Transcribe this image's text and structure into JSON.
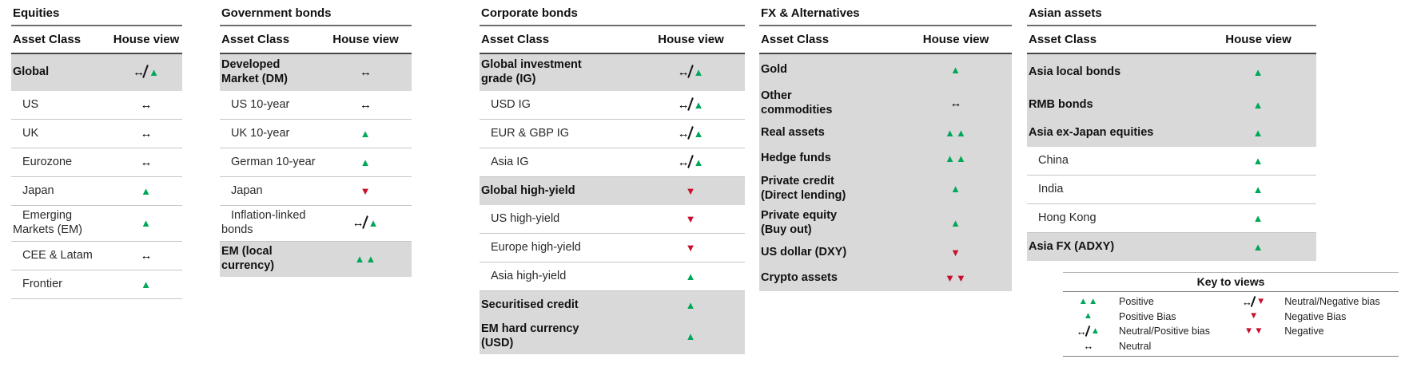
{
  "colors": {
    "positive_green": "#00a758",
    "negative_red": "#c8102e",
    "highlight_row_gray": "#d9d9d9"
  },
  "view_glyphs": {
    "up": "▲",
    "down": "▼",
    "neutral": "↔"
  },
  "tables": [
    {
      "title": "Equities",
      "headers": {
        "asset_class": "Asset Class",
        "house_view": "House view"
      },
      "rows": [
        {
          "label": "Global",
          "view": "neutral_positive_bias",
          "emphasis": true
        },
        {
          "label": "US",
          "view": "neutral"
        },
        {
          "label": "UK",
          "view": "neutral"
        },
        {
          "label": "Eurozone",
          "view": "neutral"
        },
        {
          "label": "Japan",
          "view": "positive_bias"
        },
        {
          "label": "Emerging\nMarkets (EM)",
          "view": "positive_bias",
          "two_line": true
        },
        {
          "label": "CEE & Latam",
          "view": "neutral"
        },
        {
          "label": "Frontier",
          "view": "positive_bias"
        }
      ]
    },
    {
      "title": "Government bonds",
      "headers": {
        "asset_class": "Asset Class",
        "house_view": "House view"
      },
      "rows": [
        {
          "label": "Developed\nMarket (DM)",
          "view": "neutral",
          "emphasis": true,
          "two_line": true
        },
        {
          "label": "US 10-year",
          "view": "neutral"
        },
        {
          "label": "UK 10-year",
          "view": "positive_bias"
        },
        {
          "label": "German 10-year",
          "view": "positive_bias"
        },
        {
          "label": "Japan",
          "view": "negative_bias"
        },
        {
          "label": "Inflation-linked\nbonds",
          "view": "neutral_positive_bias",
          "two_line": true
        },
        {
          "label": "EM (local\ncurrency)",
          "view": "positive",
          "emphasis": true,
          "two_line": true
        }
      ]
    },
    {
      "title": "Corporate bonds",
      "headers": {
        "asset_class": "Asset Class",
        "house_view": "House view"
      },
      "rows": [
        {
          "label": "Global investment\ngrade (IG)",
          "view": "neutral_positive_bias",
          "emphasis": true,
          "two_line": true
        },
        {
          "label": "USD IG",
          "view": "neutral_positive_bias"
        },
        {
          "label": "EUR & GBP IG",
          "view": "neutral_positive_bias"
        },
        {
          "label": "Asia IG",
          "view": "neutral_positive_bias"
        },
        {
          "label": "Global high-yield",
          "view": "negative_bias",
          "emphasis": true
        },
        {
          "label": "US high-yield",
          "view": "negative_bias"
        },
        {
          "label": "Europe high-yield",
          "view": "negative_bias"
        },
        {
          "label": "Asia high-yield",
          "view": "positive_bias"
        },
        {
          "label": "Securitised credit",
          "view": "positive_bias",
          "emphasis": true
        },
        {
          "label": "EM hard currency\n(USD)",
          "view": "positive_bias",
          "emphasis": true,
          "two_line": true
        }
      ]
    },
    {
      "title": "FX & Alternatives",
      "headers": {
        "asset_class": "Asset Class",
        "house_view": "House view"
      },
      "body_highlight": true,
      "rows": [
        {
          "label": "Gold",
          "view": "positive_bias",
          "emphasis": true
        },
        {
          "label": "Other\ncommodities",
          "view": "neutral",
          "emphasis": true,
          "two_line": true
        },
        {
          "label": "Real assets",
          "view": "positive",
          "emphasis": true
        },
        {
          "label": "Hedge funds",
          "view": "positive",
          "emphasis": true
        },
        {
          "label": "Private credit\n(Direct lending)",
          "view": "positive_bias",
          "emphasis": true,
          "two_line": true
        },
        {
          "label": "Private equity\n(Buy out)",
          "view": "positive_bias",
          "emphasis": true,
          "two_line": true
        },
        {
          "label": "US dollar (DXY)",
          "view": "negative_bias",
          "emphasis": true
        },
        {
          "label": "Crypto assets",
          "view": "negative",
          "emphasis": true
        }
      ]
    },
    {
      "title": "Asian assets",
      "headers": {
        "asset_class": "Asset Class",
        "house_view": "House view"
      },
      "rows": [
        {
          "label": "Asia local bonds",
          "view": "positive_bias",
          "emphasis": true
        },
        {
          "label": "RMB bonds",
          "view": "positive_bias",
          "emphasis": true
        },
        {
          "label": "Asia ex-Japan equities",
          "view": "positive_bias",
          "emphasis": true
        },
        {
          "label": "China",
          "view": "positive_bias"
        },
        {
          "label": "India",
          "view": "positive_bias"
        },
        {
          "label": "Hong Kong",
          "view": "positive_bias"
        },
        {
          "label": "Asia FX (ADXY)",
          "view": "positive_bias",
          "emphasis": true
        }
      ]
    }
  ],
  "legend": {
    "title": "Key to views",
    "entries": [
      {
        "view": "positive",
        "label": "Positive"
      },
      {
        "view": "positive_bias",
        "label": "Positive Bias"
      },
      {
        "view": "neutral_positive_bias",
        "label": "Neutral/Positive bias"
      },
      {
        "view": "neutral",
        "label": "Neutral"
      },
      {
        "view": "neutral_negative_bias",
        "label": "Neutral/Negative bias"
      },
      {
        "view": "negative_bias",
        "label": "Negative Bias"
      },
      {
        "view": "negative",
        "label": "Negative"
      }
    ]
  }
}
